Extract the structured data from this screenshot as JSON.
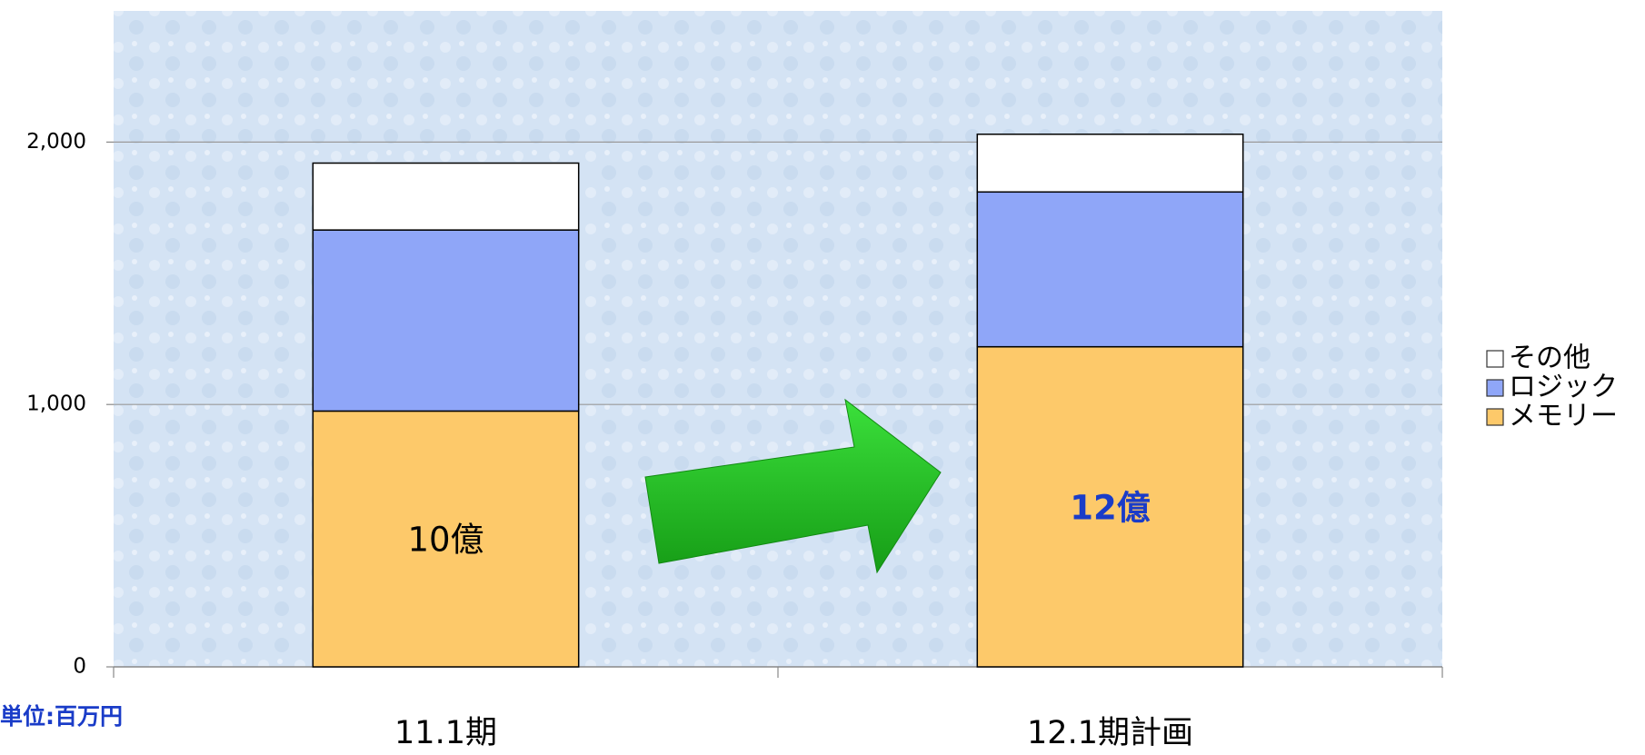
{
  "chart_data": {
    "type": "stacked_bar",
    "categories": [
      "11.1期",
      "12.1期計画"
    ],
    "series": [
      {
        "name": "メモリー",
        "color": "#fdc96a",
        "values": [
          975,
          1220
        ]
      },
      {
        "name": "ロジック",
        "color": "#8fa6f8",
        "values": [
          690,
          590
        ]
      },
      {
        "name": "その他",
        "color": "#ffffff",
        "values": [
          255,
          220
        ]
      }
    ],
    "ylim": [
      0,
      2500
    ],
    "yticks": [
      0,
      {
        "value": 1000,
        "label": "1,000"
      },
      {
        "value": 2000,
        "label": "2,000"
      }
    ],
    "grid": true,
    "legend": "right",
    "annotations": [
      "10億",
      "12億"
    ],
    "unit_label": "単位:百万円"
  }
}
